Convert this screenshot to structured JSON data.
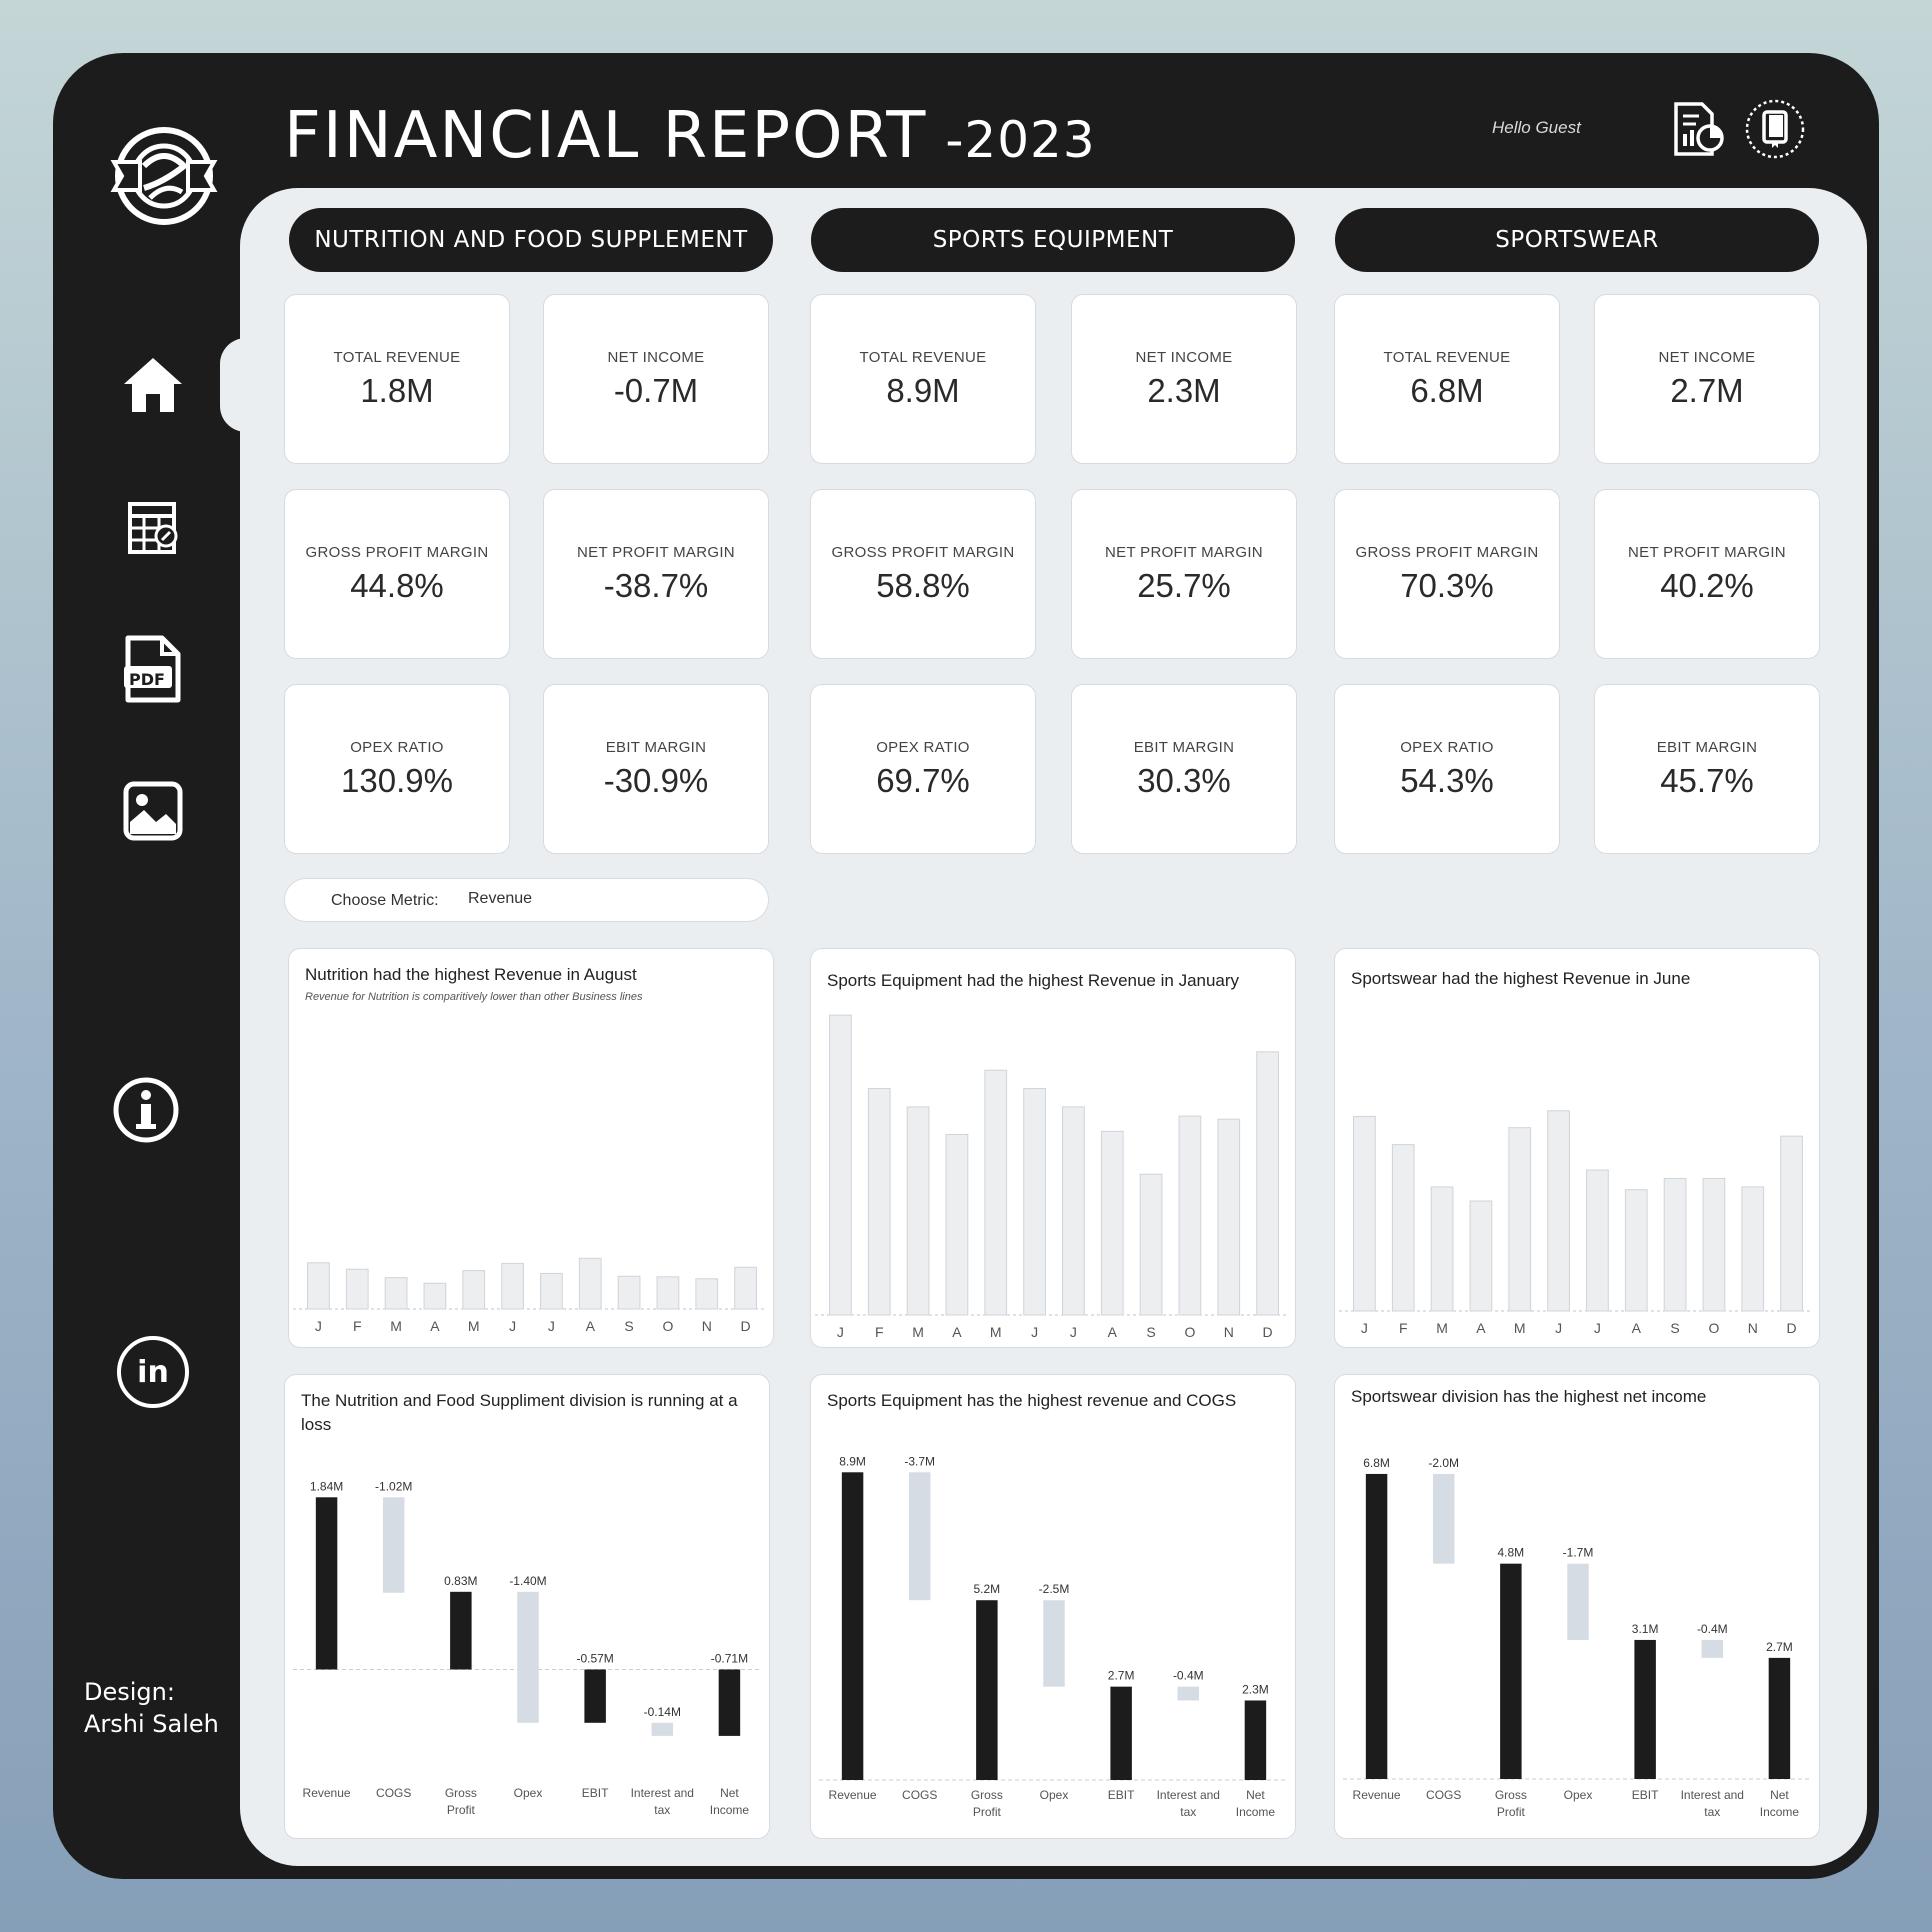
{
  "header": {
    "title": "FINANCIAL REPORT",
    "year": "-2023",
    "greeting": "Hello  Guest"
  },
  "sidebar": {
    "items": [
      {
        "name": "home",
        "icon": "home-icon"
      },
      {
        "name": "table",
        "icon": "calculator-table-icon"
      },
      {
        "name": "pdf",
        "icon": "pdf-icon",
        "label": "PDF"
      },
      {
        "name": "image",
        "icon": "image-icon"
      },
      {
        "name": "info",
        "icon": "info-icon"
      },
      {
        "name": "linkedin",
        "icon": "linkedin-icon",
        "label": "in"
      }
    ],
    "design_label": "Design:",
    "design_author": "Arshi Saleh"
  },
  "divisions": [
    {
      "name": "NUTRITION AND FOOD SUPPLEMENT",
      "kpis": [
        {
          "label": "TOTAL REVENUE",
          "value": "1.8M"
        },
        {
          "label": "NET INCOME",
          "value": "-0.7M"
        },
        {
          "label": "GROSS PROFIT MARGIN",
          "value": "44.8%"
        },
        {
          "label": "NET PROFIT MARGIN",
          "value": "-38.7%"
        },
        {
          "label": "OPEX RATIO",
          "value": "130.9%"
        },
        {
          "label": "EBIT MARGIN",
          "value": "-30.9%"
        }
      ]
    },
    {
      "name": "SPORTS EQUIPMENT",
      "kpis": [
        {
          "label": "TOTAL REVENUE",
          "value": "8.9M"
        },
        {
          "label": "NET INCOME",
          "value": "2.3M"
        },
        {
          "label": "GROSS PROFIT MARGIN",
          "value": "58.8%"
        },
        {
          "label": "NET PROFIT MARGIN",
          "value": "25.7%"
        },
        {
          "label": "OPEX RATIO",
          "value": "69.7%"
        },
        {
          "label": "EBIT MARGIN",
          "value": "30.3%"
        }
      ]
    },
    {
      "name": "SPORTSWEAR",
      "kpis": [
        {
          "label": "TOTAL REVENUE",
          "value": "6.8M"
        },
        {
          "label": "NET INCOME",
          "value": "2.7M"
        },
        {
          "label": "GROSS PROFIT MARGIN",
          "value": "70.3%"
        },
        {
          "label": "NET PROFIT MARGIN",
          "value": "40.2%"
        },
        {
          "label": "OPEX RATIO",
          "value": "54.3%"
        },
        {
          "label": "EBIT MARGIN",
          "value": "45.7%"
        }
      ]
    }
  ],
  "metric_selector": {
    "label": "Choose Metric:",
    "value": "Revenue"
  },
  "colors": {
    "dark": "#1c1c1c",
    "panel": "#ebeef1",
    "bar_light": "#eceef0",
    "bar_light_stroke": "#cfd4da",
    "waterfall_neg": "#d6dce3"
  },
  "chart_data": [
    {
      "type": "bar",
      "title": "Nutrition had the highest Revenue in August",
      "subtitle": "Revenue for Nutrition is comparitively lower than other Business lines",
      "categories": [
        "J",
        "F",
        "M",
        "A",
        "M",
        "J",
        "J",
        "A",
        "S",
        "O",
        "N",
        "D"
      ],
      "values": [
        0.165,
        0.142,
        0.112,
        0.092,
        0.137,
        0.163,
        0.127,
        0.181,
        0.117,
        0.115,
        0.108,
        0.149
      ],
      "ylim": [
        0,
        1.0
      ]
    },
    {
      "type": "bar",
      "title": "Sports Equipment had the highest Revenue in January",
      "categories": [
        "J",
        "F",
        "M",
        "A",
        "M",
        "J",
        "J",
        "A",
        "S",
        "O",
        "N",
        "D"
      ],
      "values": [
        0.98,
        0.74,
        0.68,
        0.59,
        0.8,
        0.74,
        0.68,
        0.6,
        0.46,
        0.65,
        0.64,
        0.86
      ],
      "ylim": [
        0,
        1.0
      ]
    },
    {
      "type": "bar",
      "title": "Sportswear had the highest Revenue in June",
      "categories": [
        "J",
        "F",
        "M",
        "A",
        "M",
        "J",
        "J",
        "A",
        "S",
        "O",
        "N",
        "D"
      ],
      "values": [
        0.69,
        0.59,
        0.44,
        0.39,
        0.65,
        0.71,
        0.5,
        0.43,
        0.47,
        0.47,
        0.44,
        0.62
      ],
      "ylim": [
        0,
        1.0
      ]
    },
    {
      "type": "waterfall",
      "title": "The Nutrition and Food Suppliment division is running at a loss",
      "categories": [
        "Revenue",
        "COGS",
        "Gross Profit",
        "Opex",
        "EBIT",
        "Interest and tax",
        "Net Income"
      ],
      "values": [
        1.84,
        -1.02,
        0.83,
        -1.4,
        -0.57,
        -0.14,
        -0.71
      ],
      "data_labels": [
        "1.84M",
        "-1.02M",
        "0.83M",
        "-1.40M",
        "-0.57M",
        "-0.14M",
        "-0.71M"
      ],
      "kinds": [
        "total",
        "delta",
        "total",
        "delta",
        "total",
        "delta",
        "total"
      ],
      "ylim": [
        -0.85,
        1.95
      ]
    },
    {
      "type": "waterfall",
      "title": "Sports Equipment has the highest revenue and COGS",
      "categories": [
        "Revenue",
        "COGS",
        "Gross Profit",
        "Opex",
        "EBIT",
        "Interest and tax",
        "Net Income"
      ],
      "values": [
        8.9,
        -3.7,
        5.2,
        -2.5,
        2.7,
        -0.4,
        2.3
      ],
      "data_labels": [
        "8.9M",
        "-3.7M",
        "5.2M",
        "-2.5M",
        "2.7M",
        "-0.4M",
        "2.3M"
      ],
      "kinds": [
        "total",
        "delta",
        "total",
        "delta",
        "total",
        "delta",
        "total"
      ],
      "ylim": [
        0,
        9.4
      ]
    },
    {
      "type": "waterfall",
      "title": "Sportswear division has the highest net income",
      "categories": [
        "Revenue",
        "COGS",
        "Gross Profit",
        "Opex",
        "EBIT",
        "Interest and tax",
        "Net Income"
      ],
      "values": [
        6.8,
        -2.0,
        4.8,
        -1.7,
        3.1,
        -0.4,
        2.7
      ],
      "data_labels": [
        "6.8M",
        "-2.0M",
        "4.8M",
        "-1.7M",
        "3.1M",
        "-0.4M",
        "2.7M"
      ],
      "kinds": [
        "total",
        "delta",
        "total",
        "delta",
        "total",
        "delta",
        "total"
      ],
      "ylim": [
        0,
        7.2
      ]
    }
  ]
}
